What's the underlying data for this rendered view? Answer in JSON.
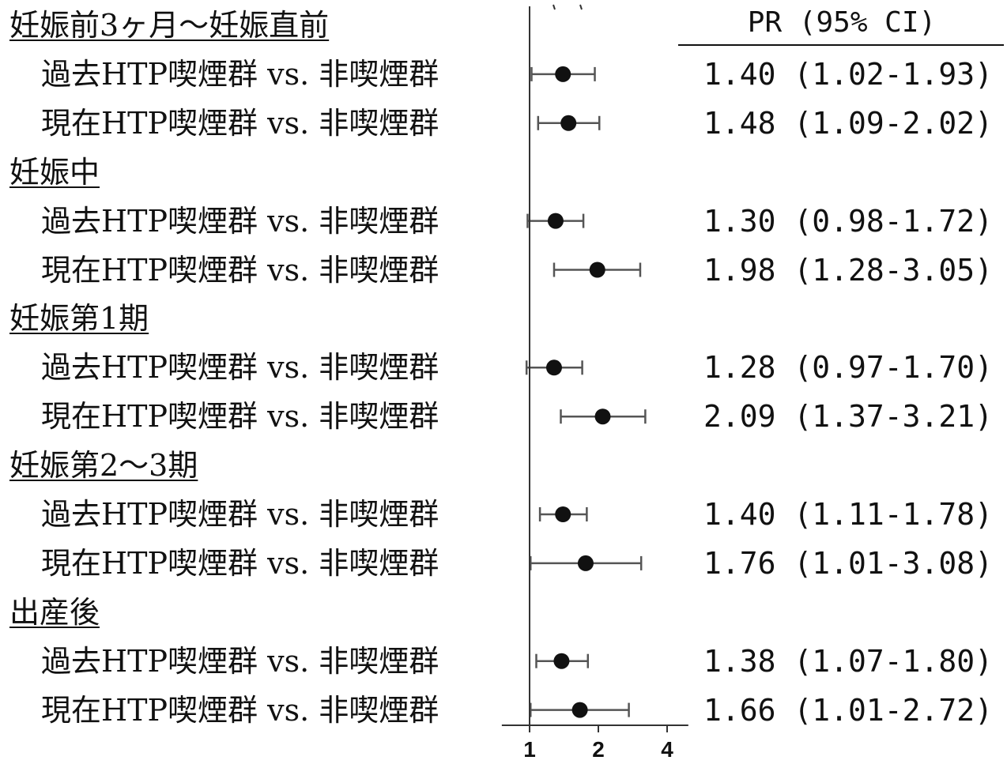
{
  "chart_data": {
    "type": "forest",
    "x_scale": "log",
    "x_ticks": [
      1,
      2,
      4
    ],
    "x_tick_labels": [
      "1",
      "2",
      "4"
    ],
    "xlim": [
      0.96,
      3.9
    ],
    "reference_line": 1,
    "header": "PR (95% CI)",
    "groups": [
      {
        "label": "妊娠前3ヶ月～妊娠直前",
        "rows": [
          {
            "label": "過去HTP喫煙群 vs. 非喫煙群",
            "pr": 1.4,
            "lower": 1.02,
            "upper": 1.93,
            "text": "1.40 (1.02-1.93)"
          },
          {
            "label": "現在HTP喫煙群 vs. 非喫煙群",
            "pr": 1.48,
            "lower": 1.09,
            "upper": 2.02,
            "text": "1.48 (1.09-2.02)"
          }
        ]
      },
      {
        "label": "妊娠中",
        "rows": [
          {
            "label": "過去HTP喫煙群 vs. 非喫煙群",
            "pr": 1.3,
            "lower": 0.98,
            "upper": 1.72,
            "text": "1.30 (0.98-1.72)"
          },
          {
            "label": "現在HTP喫煙群 vs. 非喫煙群",
            "pr": 1.98,
            "lower": 1.28,
            "upper": 3.05,
            "text": "1.98 (1.28-3.05)"
          }
        ]
      },
      {
        "label": "妊娠第1期",
        "rows": [
          {
            "label": "過去HTP喫煙群 vs. 非喫煙群",
            "pr": 1.28,
            "lower": 0.97,
            "upper": 1.7,
            "text": "1.28 (0.97-1.70)"
          },
          {
            "label": "現在HTP喫煙群 vs. 非喫煙群",
            "pr": 2.09,
            "lower": 1.37,
            "upper": 3.21,
            "text": "2.09 (1.37-3.21)"
          }
        ]
      },
      {
        "label": "妊娠第2～3期",
        "rows": [
          {
            "label": "過去HTP喫煙群 vs. 非喫煙群",
            "pr": 1.4,
            "lower": 1.11,
            "upper": 1.78,
            "text": "1.40 (1.11-1.78)"
          },
          {
            "label": "現在HTP喫煙群 vs. 非喫煙群",
            "pr": 1.76,
            "lower": 1.01,
            "upper": 3.08,
            "text": "1.76 (1.01-3.08)"
          }
        ]
      },
      {
        "label": "出産後",
        "rows": [
          {
            "label": "過去HTP喫煙群 vs. 非喫煙群",
            "pr": 1.38,
            "lower": 1.07,
            "upper": 1.8,
            "text": "1.38 (1.07-1.80)"
          },
          {
            "label": "現在HTP喫煙群 vs. 非喫煙群",
            "pr": 1.66,
            "lower": 1.01,
            "upper": 2.72,
            "text": "1.66 (1.01-2.72)"
          }
        ]
      }
    ],
    "colors": {
      "marks": "#111111",
      "whiskers": "#555555",
      "axis": "#333333"
    }
  }
}
